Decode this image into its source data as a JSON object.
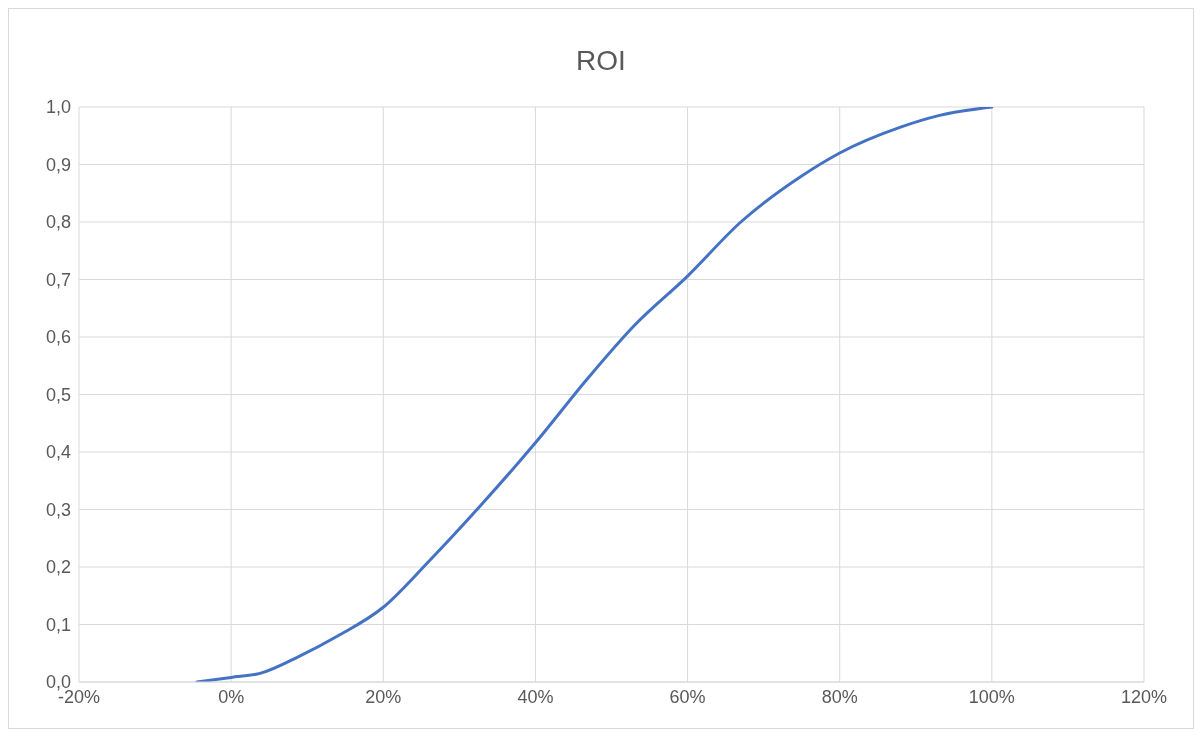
{
  "chart_data": {
    "type": "line",
    "title": "ROI",
    "x": [
      -4.5,
      0,
      3.8,
      9,
      14,
      20,
      26,
      33,
      40,
      47,
      53,
      60,
      67,
      75,
      80,
      88,
      93,
      100
    ],
    "series": [
      {
        "color": "#4472c4",
        "values": [
          0,
          0.008,
          0.015,
          0.045,
          0.08,
          0.13,
          0.21,
          0.31,
          0.416,
          0.53,
          0.62,
          0.706,
          0.8,
          0.88,
          0.92,
          0.965,
          0.985,
          1.0
        ]
      }
    ],
    "xlim": [
      -20,
      120
    ],
    "xticks": [
      {
        "value": -20,
        "label": "-20%"
      },
      {
        "value": 0,
        "label": "0%"
      },
      {
        "value": 20,
        "label": "20%"
      },
      {
        "value": 40,
        "label": "40%"
      },
      {
        "value": 60,
        "label": "60%"
      },
      {
        "value": 80,
        "label": "80%"
      },
      {
        "value": 100,
        "label": "100%"
      },
      {
        "value": 120,
        "label": "120%"
      }
    ],
    "ylim": [
      0,
      1
    ],
    "yticks": [
      {
        "value": 0,
        "label": "0,0"
      },
      {
        "value": 0.1,
        "label": "0,1"
      },
      {
        "value": 0.2,
        "label": "0,2"
      },
      {
        "value": 0.3,
        "label": "0,3"
      },
      {
        "value": 0.4,
        "label": "0,4"
      },
      {
        "value": 0.5,
        "label": "0,5"
      },
      {
        "value": 0.6,
        "label": "0,6"
      },
      {
        "value": 0.7,
        "label": "0,7"
      },
      {
        "value": 0.8,
        "label": "0,8"
      },
      {
        "value": 0.9,
        "label": "0,9"
      },
      {
        "value": 1,
        "label": "1,0"
      }
    ],
    "grid": true,
    "marker": "none",
    "line_style": "solid"
  }
}
